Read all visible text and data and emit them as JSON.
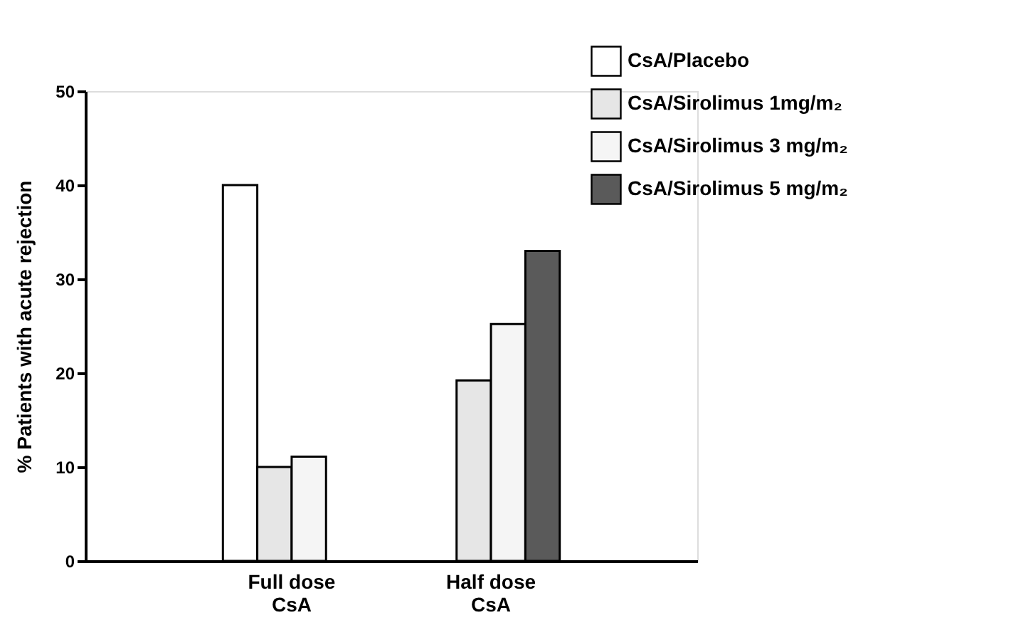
{
  "chart_data": {
    "type": "bar",
    "ylabel": "% Patients with acute rejection",
    "categories": [
      "Full dose\nCsA",
      "Half dose\nCsA"
    ],
    "series": [
      {
        "name": "CsA/Placebo",
        "color": "#ffffff",
        "values": [
          40,
          null
        ]
      },
      {
        "name": "CsA/Sirolimus 1mg/m₂",
        "color": "#e6e6e6",
        "values": [
          10,
          19.2
        ]
      },
      {
        "name": "CsA/Sirolimus 3 mg/m₂",
        "color": "#f5f5f5",
        "values": [
          11.1,
          25.2
        ]
      },
      {
        "name": "CsA/Sirolimus 5 mg/m₂",
        "color": "#5a5a5a",
        "values": [
          null,
          33
        ]
      }
    ],
    "ylim": [
      0,
      50
    ],
    "yticks": [
      0,
      10,
      20,
      30,
      40,
      50
    ],
    "grid": false,
    "legend": "top right"
  }
}
